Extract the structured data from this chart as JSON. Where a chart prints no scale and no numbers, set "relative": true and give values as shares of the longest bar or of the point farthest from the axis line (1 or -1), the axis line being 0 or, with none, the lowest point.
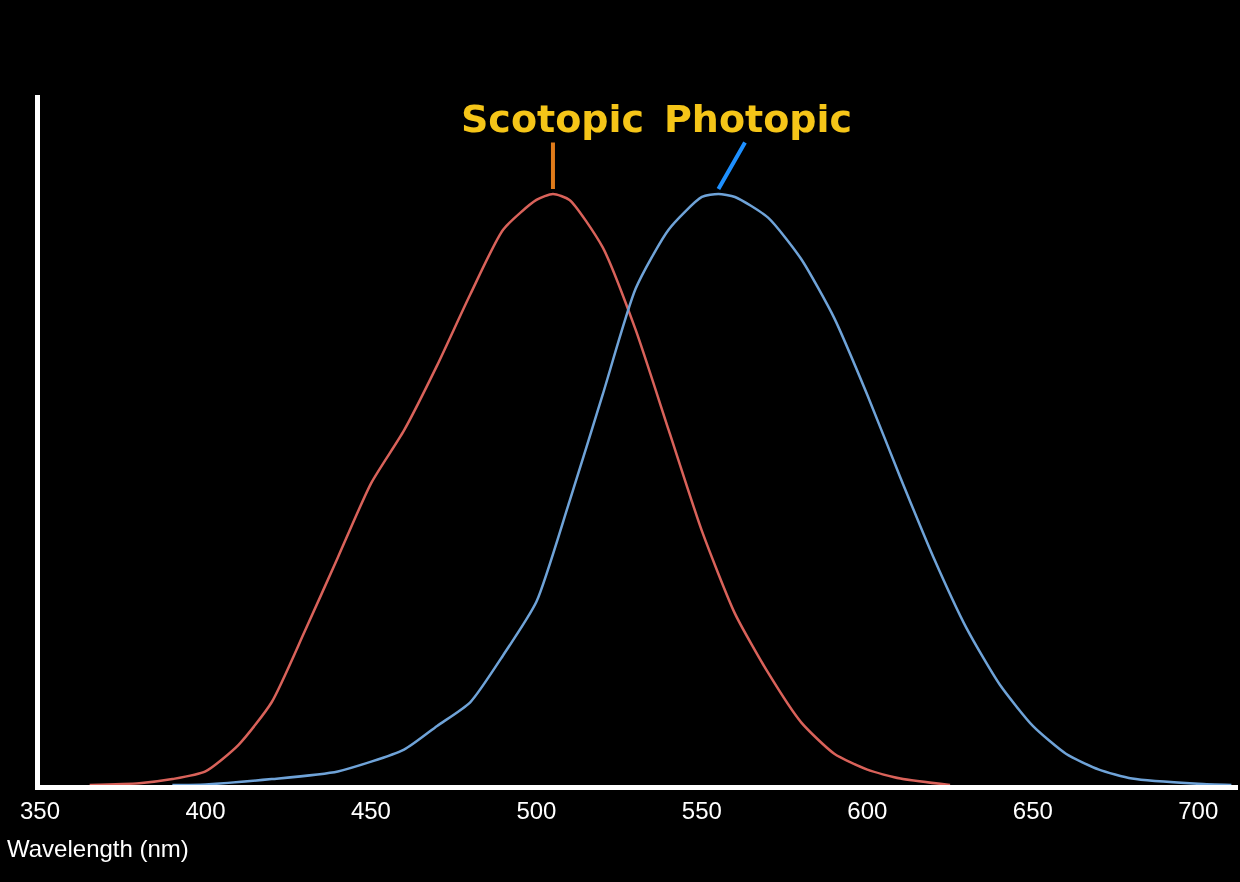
{
  "chart_data": {
    "type": "line",
    "xlabel": "Wavelength (nm)",
    "relative": true,
    "xlim": [
      350,
      712
    ],
    "xticks": [
      350,
      400,
      450,
      500,
      550,
      600,
      650,
      700
    ],
    "grid": false,
    "legend": false,
    "marker": "none",
    "line_style": "solid",
    "series": [
      {
        "name": "Scotopic",
        "color": "#d9625a",
        "x": [
          365,
          380,
          390,
          400,
          410,
          420,
          430,
          440,
          450,
          460,
          470,
          480,
          490,
          500,
          505,
          510,
          520,
          530,
          540,
          550,
          560,
          570,
          580,
          590,
          600,
          610,
          625
        ],
        "values": [
          0,
          0.003,
          0.01,
          0.023,
          0.068,
          0.14,
          0.26,
          0.385,
          0.51,
          0.6,
          0.71,
          0.83,
          0.94,
          0.99,
          1,
          0.99,
          0.91,
          0.77,
          0.6,
          0.43,
          0.29,
          0.19,
          0.106,
          0.053,
          0.026,
          0.011,
          0
        ]
      },
      {
        "name": "Photopic",
        "color": "#6fa3d8",
        "x": [
          390,
          400,
          420,
          440,
          460,
          470,
          480,
          490,
          500,
          510,
          520,
          530,
          540,
          550,
          555,
          560,
          570,
          580,
          590,
          600,
          610,
          620,
          630,
          640,
          650,
          660,
          670,
          680,
          700,
          710
        ],
        "values": [
          0,
          0.001,
          0.01,
          0.023,
          0.06,
          0.1,
          0.14,
          0.22,
          0.31,
          0.48,
          0.66,
          0.84,
          0.94,
          0.995,
          1,
          0.995,
          0.96,
          0.89,
          0.79,
          0.66,
          0.52,
          0.385,
          0.265,
          0.17,
          0.1,
          0.053,
          0.026,
          0.011,
          0.002,
          0
        ]
      }
    ]
  }
}
